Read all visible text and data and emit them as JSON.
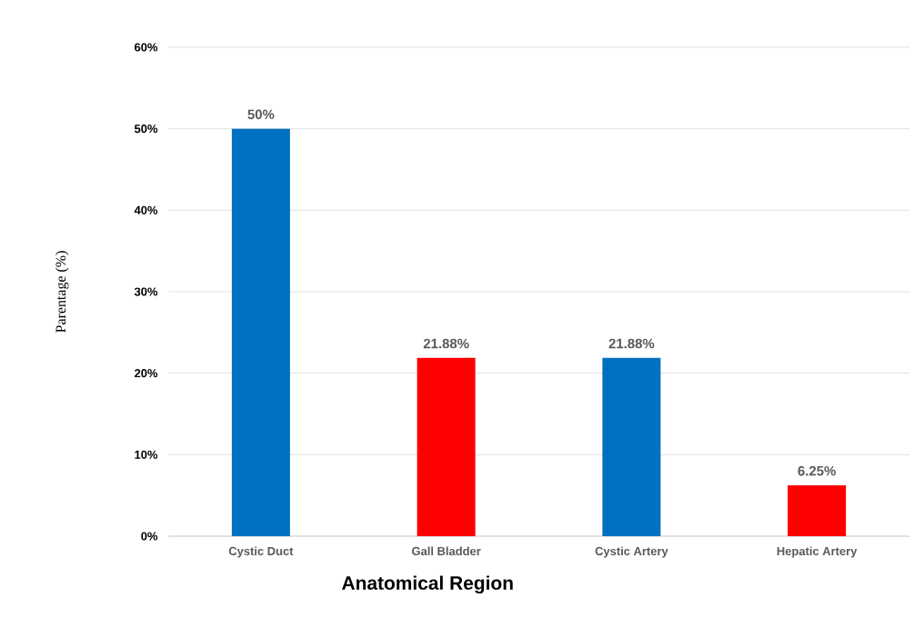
{
  "chart_data": {
    "type": "bar",
    "xlabel": "Anatomical Region",
    "ylabel": "Parentage (%)",
    "categories": [
      "Cystic Duct",
      "Gall Bladder",
      "Cystic Artery",
      "Hepatic Artery"
    ],
    "values": [
      50,
      21.88,
      21.88,
      6.25
    ],
    "colors": [
      "#0070c0",
      "#ff0000",
      "#0070c0",
      "#ff0000"
    ],
    "value_labels": [
      "50%",
      "21.88%",
      "21.88%",
      "6.25%"
    ],
    "ylim": [
      0,
      60
    ],
    "yticks": [
      {
        "value": 0,
        "label": "0%"
      },
      {
        "value": 10,
        "label": "10%"
      },
      {
        "value": 20,
        "label": "20%"
      },
      {
        "value": 30,
        "label": "30%"
      },
      {
        "value": 40,
        "label": "40%"
      },
      {
        "value": 50,
        "label": "50%"
      },
      {
        "value": 60,
        "label": "60%"
      }
    ],
    "grid": "y"
  }
}
